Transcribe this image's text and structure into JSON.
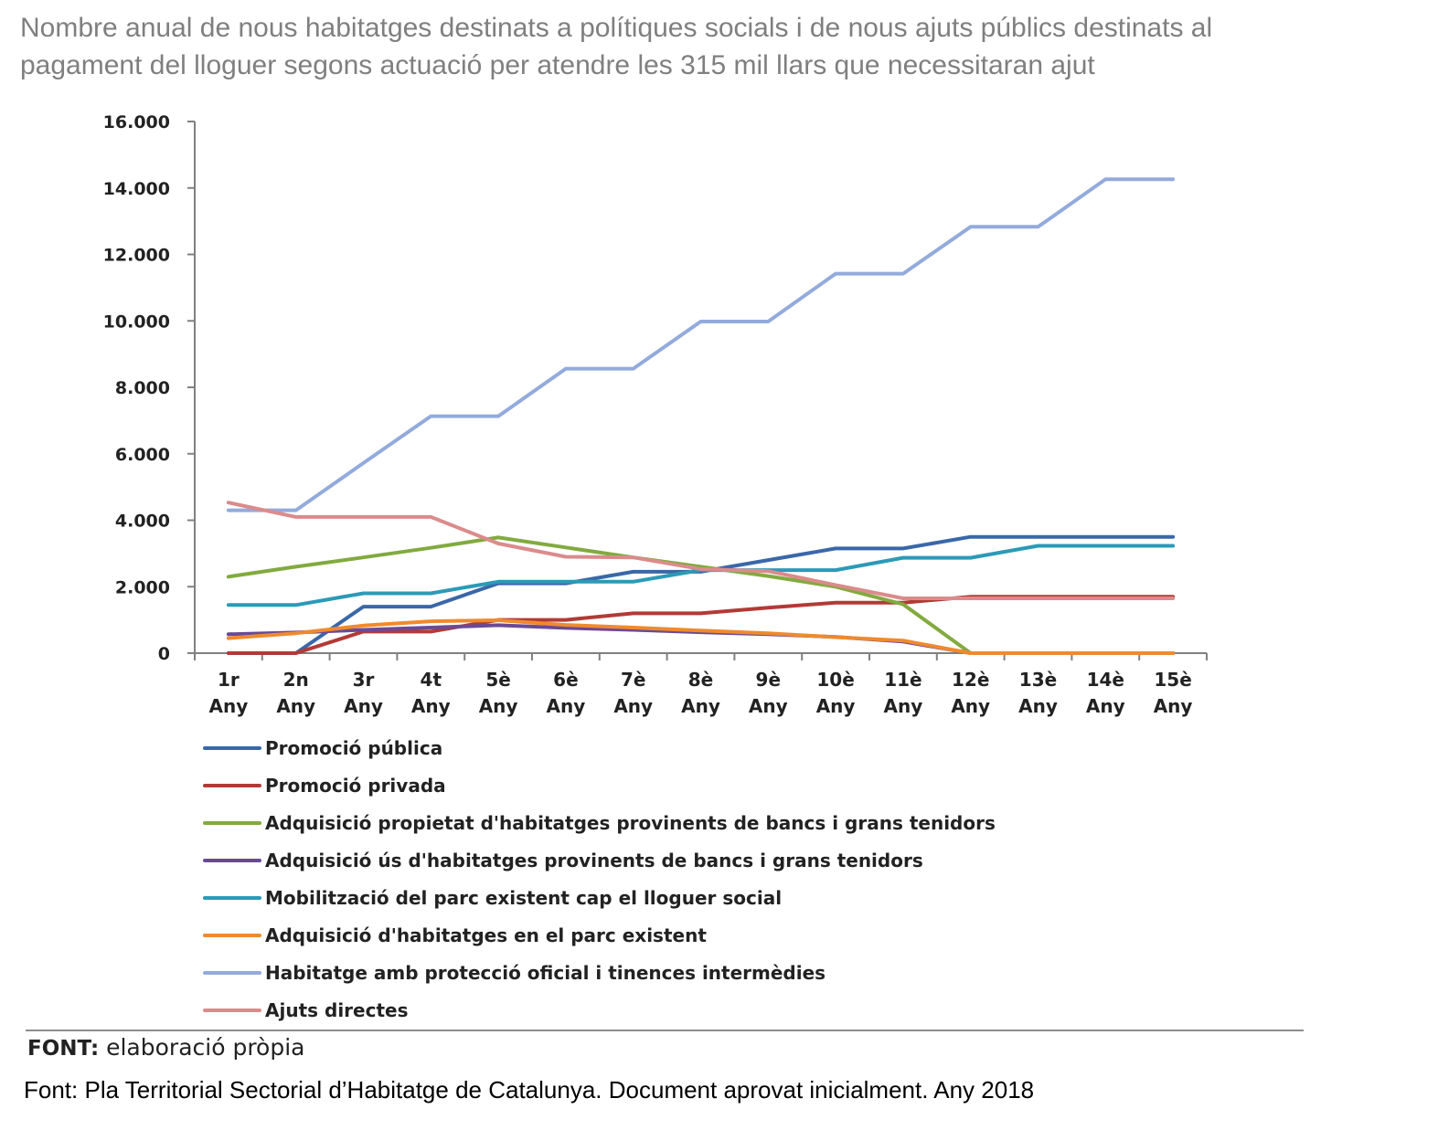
{
  "title_line1": "Nombre anual de nous habitatges destinats a polítiques socials i de nous ajuts públics destinats al",
  "title_line2": "pagament del lloguer segons actuació per atendre les 315 mil llars que necessitaran ajut",
  "chart_data": {
    "type": "line",
    "title": "",
    "xlabel": "",
    "ylabel": "",
    "ylim": [
      0,
      16000
    ],
    "yticks": [
      0,
      2000,
      4000,
      6000,
      8000,
      10000,
      12000,
      14000,
      16000
    ],
    "ytick_labels": [
      "0",
      "2.000",
      "4.000",
      "6.000",
      "8.000",
      "10.000",
      "12.000",
      "14.000",
      "16.000"
    ],
    "categories": [
      [
        "1r",
        "Any"
      ],
      [
        "2n",
        "Any"
      ],
      [
        "3r",
        "Any"
      ],
      [
        "4t",
        "Any"
      ],
      [
        "5è",
        "Any"
      ],
      [
        "6è",
        "Any"
      ],
      [
        "7è",
        "Any"
      ],
      [
        "8è",
        "Any"
      ],
      [
        "9è",
        "Any"
      ],
      [
        "10è",
        "Any"
      ],
      [
        "11è",
        "Any"
      ],
      [
        "12è",
        "Any"
      ],
      [
        "13è",
        "Any"
      ],
      [
        "14è",
        "Any"
      ],
      [
        "15è",
        "Any"
      ]
    ],
    "grid": false,
    "legend_position": "bottom",
    "series": [
      {
        "name": "Promoció pública",
        "color": "#3a67a8",
        "values": [
          0,
          0,
          1400,
          1400,
          2100,
          2100,
          2450,
          2450,
          2800,
          3150,
          3150,
          3500,
          3500,
          3500,
          3500
        ]
      },
      {
        "name": "Promoció privada",
        "color": "#b23a36",
        "values": [
          0,
          0,
          650,
          650,
          1000,
          1000,
          1200,
          1200,
          1370,
          1520,
          1520,
          1700,
          1700,
          1700,
          1700
        ]
      },
      {
        "name": "Adquisició propietat d'habitatges provinents de bancs i grans tenidors",
        "color": "#82aa3f",
        "values": [
          2300,
          2600,
          2880,
          3170,
          3480,
          3180,
          2880,
          2600,
          2320,
          2000,
          1470,
          0,
          0,
          0,
          0
        ]
      },
      {
        "name": "Adquisició ús d'habitatges provinents de bancs i grans tenidors",
        "color": "#6a4a96",
        "values": [
          570,
          620,
          700,
          770,
          840,
          760,
          700,
          630,
          570,
          490,
          350,
          0,
          0,
          0,
          0
        ]
      },
      {
        "name": "Mobilització del parc existent cap el lloguer social",
        "color": "#2b9ab7",
        "values": [
          1450,
          1450,
          1800,
          1800,
          2150,
          2150,
          2150,
          2500,
          2500,
          2500,
          2870,
          2870,
          3230,
          3230,
          3230
        ]
      },
      {
        "name": "Adquisició d'habitatges en el parc existent",
        "color": "#ef8a2e",
        "values": [
          450,
          600,
          830,
          960,
          990,
          850,
          770,
          680,
          600,
          480,
          380,
          0,
          0,
          0,
          0
        ]
      },
      {
        "name": "Habitatge amb protecció oficial i tinences intermèdies",
        "color": "#93aadc",
        "values": [
          4300,
          4300,
          5720,
          7130,
          7130,
          8560,
          8560,
          9980,
          9980,
          11420,
          11420,
          12830,
          12830,
          14260,
          14260
        ]
      },
      {
        "name": "Ajuts directes",
        "color": "#db8b8b",
        "values": [
          4530,
          4100,
          4100,
          4100,
          3300,
          2900,
          2880,
          2530,
          2470,
          2050,
          1650,
          1650,
          1650,
          1650,
          1650
        ]
      }
    ]
  },
  "footer": {
    "font_label": "FONT:",
    "font_text": "elaboració pròpia",
    "source": "Font: Pla Territorial Sectorial d’Habitatge de Catalunya. Document aprovat inicialment. Any 2018"
  }
}
